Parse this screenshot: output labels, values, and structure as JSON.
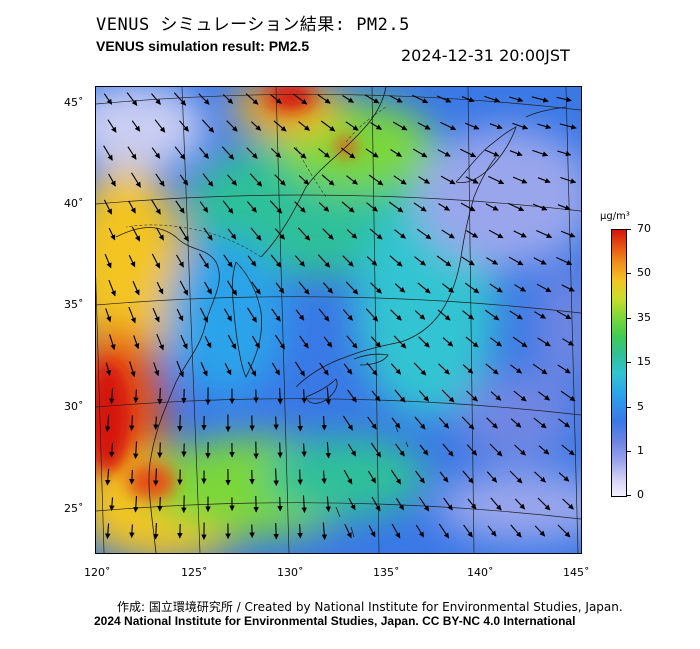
{
  "header": {
    "title_jp": "VENUS シミュレーション結果: PM2.5",
    "title_en": "VENUS simulation result: PM2.5",
    "timestamp": "2024-12-31 20:00JST"
  },
  "map": {
    "lon_labels": [
      "120˚",
      "125˚",
      "130˚",
      "135˚",
      "140˚",
      "145˚"
    ],
    "lat_labels": [
      "45˚",
      "40˚",
      "35˚",
      "30˚",
      "25˚"
    ],
    "colors": {
      "very_low": "#e8e8f8",
      "low": "#3a78e6",
      "mid": "#2fc09a",
      "moderate": "#7bd73a",
      "high": "#f3c424",
      "very_high": "#d5140b"
    }
  },
  "colorbar": {
    "unit": "μg/m³",
    "labels": [
      "70",
      "50",
      "35",
      "15",
      "5",
      "1",
      "0"
    ]
  },
  "footer": {
    "credit_line1": "作成: 国立環境研究所 / Created by National Institute for Environmental Studies, Japan.",
    "credit_line2": "2024 National Institute for Environmental Studies, Japan. CC BY-NC 4.0 International"
  }
}
